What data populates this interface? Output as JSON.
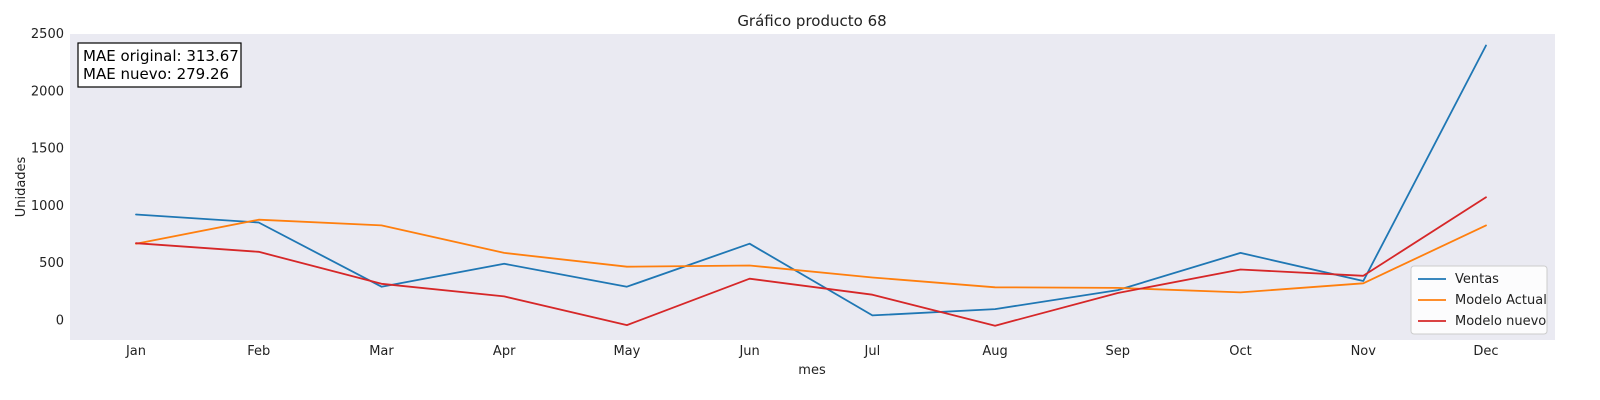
{
  "chart_data": {
    "type": "line",
    "title": "Gráfico producto 68",
    "xlabel": "mes",
    "ylabel": "Unidades",
    "categories": [
      "Jan",
      "Feb",
      "Mar",
      "Apr",
      "May",
      "Jun",
      "Jul",
      "Aug",
      "Sep",
      "Oct",
      "Nov",
      "Dec"
    ],
    "ylim": [
      -170,
      2500
    ],
    "yticks": [
      0,
      500,
      1000,
      1500,
      2000,
      2500
    ],
    "grid": false,
    "legend": "lower-right",
    "plot_background": "#eaeaf2",
    "series": [
      {
        "name": "Ventas",
        "color": "#1f77b4",
        "values": [
          925,
          855,
          295,
          495,
          295,
          670,
          45,
          100,
          265,
          590,
          345,
          2400
        ]
      },
      {
        "name": "Modelo Actual",
        "color": "#ff7f0e",
        "values": [
          670,
          880,
          830,
          590,
          470,
          480,
          375,
          290,
          285,
          245,
          325,
          830
        ]
      },
      {
        "name": "Modelo nuevo",
        "color": "#d62728",
        "values": [
          675,
          600,
          320,
          210,
          -40,
          365,
          225,
          -45,
          240,
          445,
          390,
          1075
        ]
      }
    ],
    "annotations": [
      "MAE original: 313.67",
      "MAE nuevo: 279.26"
    ]
  }
}
